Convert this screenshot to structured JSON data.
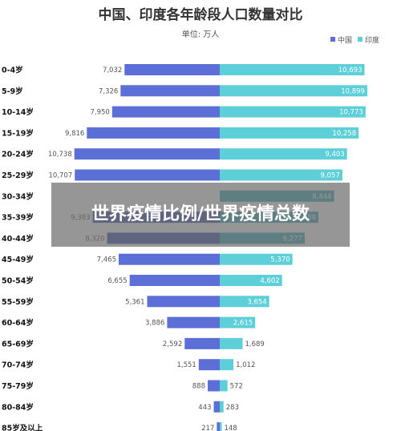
{
  "chart_data": {
    "type": "bar",
    "title": "中国、印度各年龄段人口数量对比",
    "subtitle": "单位: 万人",
    "legend": {
      "position": "top-right",
      "entries": [
        "中国",
        "印度"
      ]
    },
    "colors": {
      "china": "#5b6fd6",
      "india": "#5dcfd8",
      "china_dark": "#3a4fa8",
      "india_dark": "#3aa8b8"
    },
    "categories": [
      "0-4岁",
      "5-9岁",
      "10-14岁",
      "15-19岁",
      "20-24岁",
      "25-29岁",
      "30-34岁",
      "35-39岁",
      "40-44岁",
      "45-49岁",
      "50-54岁",
      "55-59岁",
      "60-64岁",
      "65-69岁",
      "70-74岁",
      "75-79岁",
      "80-84岁",
      "85岁及以上"
    ],
    "series": [
      {
        "name": "中国",
        "values": [
          7032,
          7326,
          7950,
          9816,
          10738,
          10707,
          null,
          9383,
          8320,
          7465,
          6655,
          5361,
          3886,
          2592,
          1551,
          888,
          443,
          217
        ],
        "labels": [
          "7,032",
          "7,326",
          "7,950",
          "9,816",
          "10,738",
          "10,707",
          "",
          "9,383",
          "8,320",
          "7,465",
          "6,655",
          "5,361",
          "3,886",
          "2,592",
          "1,551",
          "888",
          "443",
          "217"
        ]
      },
      {
        "name": "印度",
        "values": [
          10693,
          10899,
          10773,
          10258,
          9403,
          9057,
          8444,
          7288,
          6277,
          5370,
          4602,
          3654,
          2615,
          1689,
          1012,
          572,
          283,
          148
        ],
        "labels": [
          "10,693",
          "10,899",
          "10,773",
          "10,258",
          "9,403",
          "9,057",
          "8,444",
          "7,288",
          "6,277",
          "5,370",
          "4,602",
          "3,654",
          "2,615",
          "1,689",
          "1,012",
          "572",
          "283",
          "148"
        ]
      }
    ],
    "highlight_rows": [
      6,
      7,
      8
    ]
  },
  "overlay": {
    "text": "世界疫情比例/世界疫情总数"
  }
}
